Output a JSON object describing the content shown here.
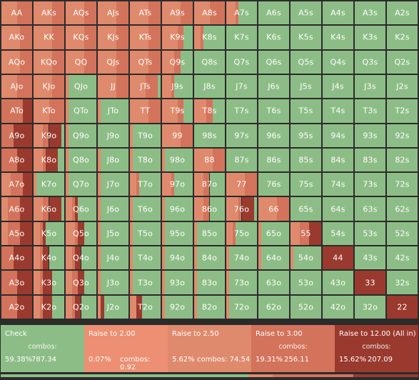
{
  "colors": {
    "check": "#8dbd86",
    "raise_2": "#ed8f72",
    "raise_2_5": "#e08a6d",
    "raise_3": "#d3735b",
    "allin": "#9a3a2e"
  },
  "hands": [
    [
      "AA",
      "AKs",
      "AQs",
      "AJs",
      "ATs",
      "A9s",
      "A8s",
      "A7s",
      "A6s",
      "A5s",
      "A4s",
      "A3s",
      "A2s"
    ],
    [
      "AKo",
      "KK",
      "KQs",
      "KJs",
      "KTs",
      "K9s",
      "K8s",
      "K7s",
      "K6s",
      "K5s",
      "K4s",
      "K3s",
      "K2s"
    ],
    [
      "AQo",
      "KQo",
      "QQ",
      "QJs",
      "QTs",
      "Q9s",
      "Q8s",
      "Q7s",
      "Q6s",
      "Q5s",
      "Q4s",
      "Q3s",
      "Q2s"
    ],
    [
      "AJo",
      "KJo",
      "QJo",
      "JJ",
      "JTs",
      "J9s",
      "J8s",
      "J7s",
      "J6s",
      "J5s",
      "J4s",
      "J3s",
      "J2s"
    ],
    [
      "ATo",
      "KTo",
      "QTo",
      "JTo",
      "TT",
      "T9s",
      "T8s",
      "T7s",
      "T6s",
      "T5s",
      "T4s",
      "T3s",
      "T2s"
    ],
    [
      "A9o",
      "K9o",
      "Q9o",
      "J9o",
      "T9o",
      "99",
      "98s",
      "97s",
      "96s",
      "95s",
      "94s",
      "93s",
      "92s"
    ],
    [
      "A8o",
      "K8o",
      "Q8o",
      "J8o",
      "T8o",
      "98o",
      "88",
      "87s",
      "86s",
      "85s",
      "84s",
      "83s",
      "82s"
    ],
    [
      "A7o",
      "K7o",
      "Q7o",
      "J7o",
      "T7o",
      "97o",
      "87o",
      "77",
      "76s",
      "75s",
      "74s",
      "73s",
      "72s"
    ],
    [
      "A6o",
      "K6o",
      "Q6o",
      "J6o",
      "T6o",
      "96o",
      "86o",
      "76o",
      "66",
      "65s",
      "64s",
      "63s",
      "62s"
    ],
    [
      "A5o",
      "K5o",
      "Q5o",
      "J5o",
      "T5o",
      "95o",
      "85o",
      "75o",
      "65o",
      "55",
      "54s",
      "53s",
      "52s"
    ],
    [
      "A4o",
      "K4o",
      "Q4o",
      "J4o",
      "T4o",
      "94o",
      "84o",
      "74o",
      "64o",
      "54o",
      "44",
      "43s",
      "42s"
    ],
    [
      "A3o",
      "K3o",
      "Q3o",
      "J3o",
      "T3o",
      "93o",
      "83o",
      "73o",
      "63o",
      "53o",
      "43o",
      "33",
      "32s"
    ],
    [
      "A2o",
      "K2o",
      "Q2o",
      "J2o",
      "T2o",
      "92o",
      "82o",
      "72o",
      "62o",
      "52o",
      "42o",
      "32o",
      "22"
    ]
  ],
  "mixes": [
    [
      [
        0,
        0,
        0.5,
        0.5,
        0
      ],
      [
        0,
        0,
        0.6,
        0.4,
        0
      ],
      [
        0,
        0,
        0.6,
        0.4,
        0
      ],
      [
        0,
        0,
        0.6,
        0.4,
        0
      ],
      [
        0,
        0,
        0.6,
        0.4,
        0
      ],
      [
        0,
        0,
        0.6,
        0.4,
        0
      ],
      [
        0,
        0,
        0.5,
        0.5,
        0
      ],
      [
        0.6,
        0,
        0.3,
        0.1,
        0
      ],
      [
        1,
        0,
        0,
        0,
        0
      ],
      [
        1,
        0,
        0,
        0,
        0
      ],
      [
        1,
        0,
        0,
        0,
        0
      ],
      [
        1,
        0,
        0,
        0,
        0
      ],
      [
        1,
        0,
        0,
        0,
        0
      ]
    ],
    [
      [
        0,
        0,
        0.6,
        0.4,
        0
      ],
      [
        0,
        0,
        0.6,
        0.4,
        0
      ],
      [
        0,
        0,
        0.6,
        0.4,
        0
      ],
      [
        0,
        0,
        0.6,
        0.4,
        0
      ],
      [
        0,
        0,
        0.6,
        0.4,
        0
      ],
      [
        0.3,
        0,
        0.5,
        0.2,
        0
      ],
      [
        0.7,
        0,
        0.2,
        0.1,
        0
      ],
      [
        1,
        0,
        0,
        0,
        0
      ],
      [
        1,
        0,
        0,
        0,
        0
      ],
      [
        1,
        0,
        0,
        0,
        0
      ],
      [
        1,
        0,
        0,
        0,
        0
      ],
      [
        1,
        0,
        0,
        0,
        0
      ],
      [
        1,
        0,
        0,
        0,
        0
      ]
    ],
    [
      [
        0,
        0,
        0.6,
        0.4,
        0
      ],
      [
        0,
        0,
        0.6,
        0.4,
        0
      ],
      [
        0,
        0,
        0.6,
        0.4,
        0
      ],
      [
        0,
        0,
        0.6,
        0.4,
        0
      ],
      [
        0,
        0,
        0.6,
        0.4,
        0
      ],
      [
        0.4,
        0,
        0.4,
        0.2,
        0
      ],
      [
        1,
        0,
        0,
        0,
        0
      ],
      [
        1,
        0,
        0,
        0,
        0
      ],
      [
        1,
        0,
        0,
        0,
        0
      ],
      [
        1,
        0,
        0,
        0,
        0
      ],
      [
        1,
        0,
        0,
        0,
        0
      ],
      [
        1,
        0,
        0,
        0,
        0
      ],
      [
        1,
        0,
        0,
        0,
        0
      ]
    ],
    [
      [
        0,
        0,
        0.5,
        0.5,
        0
      ],
      [
        0,
        0,
        0.6,
        0.4,
        0
      ],
      [
        0.9,
        0,
        0.1,
        0,
        0
      ],
      [
        0,
        0,
        0.6,
        0.4,
        0
      ],
      [
        0.1,
        0,
        0.5,
        0.4,
        0
      ],
      [
        0.6,
        0,
        0.3,
        0.1,
        0
      ],
      [
        1,
        0,
        0,
        0,
        0
      ],
      [
        1,
        0,
        0,
        0,
        0
      ],
      [
        1,
        0,
        0,
        0,
        0
      ],
      [
        1,
        0,
        0,
        0,
        0
      ],
      [
        1,
        0,
        0,
        0,
        0
      ],
      [
        1,
        0,
        0,
        0,
        0
      ],
      [
        1,
        0,
        0,
        0,
        0
      ]
    ],
    [
      [
        0,
        0,
        0,
        0.7,
        0.3
      ],
      [
        0,
        0,
        0.5,
        0.5,
        0
      ],
      [
        0.9,
        0,
        0.1,
        0,
        0
      ],
      [
        0.9,
        0,
        0.1,
        0,
        0
      ],
      [
        0,
        0,
        0.6,
        0.4,
        0
      ],
      [
        0.3,
        0,
        0.5,
        0.2,
        0
      ],
      [
        0.4,
        0,
        0.4,
        0.2,
        0
      ],
      [
        1,
        0,
        0,
        0,
        0
      ],
      [
        1,
        0,
        0,
        0,
        0
      ],
      [
        1,
        0,
        0,
        0,
        0
      ],
      [
        1,
        0,
        0,
        0,
        0
      ],
      [
        1,
        0,
        0,
        0,
        0
      ],
      [
        1,
        0,
        0,
        0,
        0
      ]
    ],
    [
      [
        0,
        0,
        0,
        0.4,
        0.6
      ],
      [
        0.1,
        0,
        0.3,
        0.2,
        0.4
      ],
      [
        0.9,
        0,
        0.1,
        0,
        0
      ],
      [
        1,
        0,
        0,
        0,
        0
      ],
      [
        0.9,
        0,
        0.1,
        0,
        0
      ],
      [
        0,
        0,
        0.6,
        0.4,
        0
      ],
      [
        1,
        0,
        0,
        0,
        0
      ],
      [
        1,
        0,
        0,
        0,
        0
      ],
      [
        1,
        0,
        0,
        0,
        0
      ],
      [
        1,
        0,
        0,
        0,
        0
      ],
      [
        1,
        0,
        0,
        0,
        0
      ],
      [
        1,
        0,
        0,
        0,
        0
      ],
      [
        1,
        0,
        0,
        0,
        0
      ]
    ],
    [
      [
        0,
        0,
        0,
        0.5,
        0.5
      ],
      [
        0.2,
        0,
        0.3,
        0.1,
        0.4
      ],
      [
        0.9,
        0,
        0.1,
        0,
        0
      ],
      [
        0.9,
        0,
        0.1,
        0,
        0
      ],
      [
        0.9,
        0,
        0.1,
        0,
        0
      ],
      [
        0.9,
        0,
        0.1,
        0,
        0
      ],
      [
        0,
        0,
        0.6,
        0.4,
        0
      ],
      [
        1,
        0,
        0,
        0,
        0
      ],
      [
        1,
        0,
        0,
        0,
        0
      ],
      [
        1,
        0,
        0,
        0,
        0
      ],
      [
        1,
        0,
        0,
        0,
        0
      ],
      [
        1,
        0,
        0,
        0,
        0
      ],
      [
        1,
        0,
        0,
        0,
        0
      ]
    ],
    [
      [
        0,
        0,
        0.3,
        0.4,
        0.3
      ],
      [
        0.9,
        0,
        0.1,
        0,
        0
      ],
      [
        0.9,
        0,
        0.1,
        0,
        0
      ],
      [
        0.9,
        0,
        0.1,
        0,
        0
      ],
      [
        0.7,
        0,
        0.2,
        0.1,
        0
      ],
      [
        0.6,
        0,
        0.3,
        0.1,
        0
      ],
      [
        0.5,
        0,
        0.3,
        0.2,
        0
      ],
      [
        0,
        0,
        0.6,
        0.4,
        0
      ],
      [
        1,
        0,
        0,
        0,
        0
      ],
      [
        1,
        0,
        0,
        0,
        0
      ],
      [
        1,
        0,
        0,
        0,
        0
      ],
      [
        1,
        0,
        0,
        0,
        0
      ],
      [
        1,
        0,
        0,
        0,
        0
      ]
    ],
    [
      [
        0,
        0,
        0.2,
        0.4,
        0.4
      ],
      [
        0.1,
        0,
        0.3,
        0.2,
        0.4
      ],
      [
        0.6,
        0,
        0.2,
        0.1,
        0.1
      ],
      [
        0.9,
        0,
        0.1,
        0,
        0
      ],
      [
        0.9,
        0,
        0.1,
        0,
        0
      ],
      [
        0.9,
        0,
        0.1,
        0,
        0
      ],
      [
        0.5,
        0,
        0.3,
        0.2,
        0
      ],
      [
        0.1,
        0,
        0.4,
        0.1,
        0.4
      ],
      [
        0,
        0,
        0.6,
        0.4,
        0
      ],
      [
        1,
        0,
        0,
        0,
        0
      ],
      [
        1,
        0,
        0,
        0,
        0
      ],
      [
        1,
        0,
        0,
        0,
        0
      ],
      [
        1,
        0,
        0,
        0,
        0
      ]
    ],
    [
      [
        0,
        0,
        0.2,
        0.4,
        0.4
      ],
      [
        0.6,
        0,
        0.2,
        0.1,
        0.1
      ],
      [
        0.4,
        0,
        0.3,
        0.1,
        0.2
      ],
      [
        0.9,
        0,
        0.1,
        0,
        0
      ],
      [
        0.9,
        0,
        0.1,
        0,
        0
      ],
      [
        0.9,
        0,
        0.1,
        0,
        0
      ],
      [
        0.9,
        0,
        0.1,
        0,
        0
      ],
      [
        0.7,
        0,
        0.2,
        0.1,
        0
      ],
      [
        0.9,
        0,
        0.1,
        0,
        0
      ],
      [
        0,
        0,
        0.3,
        0.3,
        0.4
      ],
      [
        1,
        0,
        0,
        0,
        0
      ],
      [
        1,
        0,
        0,
        0,
        0
      ],
      [
        1,
        0,
        0,
        0,
        0
      ]
    ],
    [
      [
        0,
        0,
        0,
        0.4,
        0.6
      ],
      [
        0.5,
        0,
        0.2,
        0.1,
        0.2
      ],
      [
        0.5,
        0,
        0.2,
        0.1,
        0.2
      ],
      [
        0.9,
        0,
        0.1,
        0,
        0
      ],
      [
        0.9,
        0,
        0.1,
        0,
        0
      ],
      [
        0.9,
        0,
        0.1,
        0,
        0
      ],
      [
        0.9,
        0,
        0.1,
        0,
        0
      ],
      [
        0.9,
        0,
        0.1,
        0,
        0
      ],
      [
        0.9,
        0,
        0.1,
        0,
        0
      ],
      [
        0.9,
        0,
        0.1,
        0,
        0
      ],
      [
        0,
        0,
        0,
        0,
        1
      ],
      [
        1,
        0,
        0,
        0,
        0
      ],
      [
        1,
        0,
        0,
        0,
        0
      ]
    ],
    [
      [
        0,
        0,
        0,
        0.5,
        0.5
      ],
      [
        0.4,
        0,
        0.2,
        0.1,
        0.3
      ],
      [
        0.4,
        0,
        0.2,
        0.2,
        0.2
      ],
      [
        0.9,
        0,
        0.1,
        0,
        0
      ],
      [
        0.9,
        0,
        0.1,
        0,
        0
      ],
      [
        0.9,
        0,
        0.1,
        0,
        0
      ],
      [
        0.9,
        0,
        0.1,
        0,
        0
      ],
      [
        0.9,
        0,
        0.1,
        0,
        0
      ],
      [
        1,
        0,
        0,
        0,
        0
      ],
      [
        1,
        0,
        0,
        0,
        0
      ],
      [
        1,
        0,
        0,
        0,
        0
      ],
      [
        0,
        0,
        0,
        0,
        1
      ],
      [
        1,
        0,
        0,
        0,
        0
      ]
    ],
    [
      [
        0,
        0,
        0,
        0.5,
        0.5
      ],
      [
        0.4,
        0,
        0.2,
        0.1,
        0.3
      ],
      [
        0.5,
        0,
        0.2,
        0.1,
        0.2
      ],
      [
        0.8,
        0,
        0.1,
        0,
        0.1
      ],
      [
        0.6,
        0,
        0.2,
        0,
        0.2
      ],
      [
        0.9,
        0,
        0.1,
        0,
        0
      ],
      [
        0.9,
        0,
        0.1,
        0,
        0
      ],
      [
        0.9,
        0,
        0.1,
        0,
        0
      ],
      [
        1,
        0,
        0,
        0,
        0
      ],
      [
        1,
        0,
        0,
        0,
        0
      ],
      [
        1,
        0,
        0,
        0,
        0
      ],
      [
        1,
        0,
        0,
        0,
        0
      ],
      [
        0,
        0,
        0,
        0,
        1
      ]
    ]
  ],
  "legend": [
    {
      "name": "Check",
      "combos_label": "combos:",
      "pct": "59.38%",
      "count": "787.34"
    },
    {
      "name": "Raise to 2.00",
      "combos_label": "combos: 0.92",
      "pct": "0.07%",
      "count": ""
    },
    {
      "name": "Raise to 2.50",
      "combos_label": "combos: 74.54",
      "pct": "5.62%",
      "count": ""
    },
    {
      "name": "Raise to 3.00",
      "combos_label": "combos:",
      "pct": "19.31%",
      "count": "256.11"
    },
    {
      "name": "Raise to 12.00 (All in)",
      "combos_label": "combos:",
      "pct": "15.62%",
      "count": "207.09"
    }
  ]
}
